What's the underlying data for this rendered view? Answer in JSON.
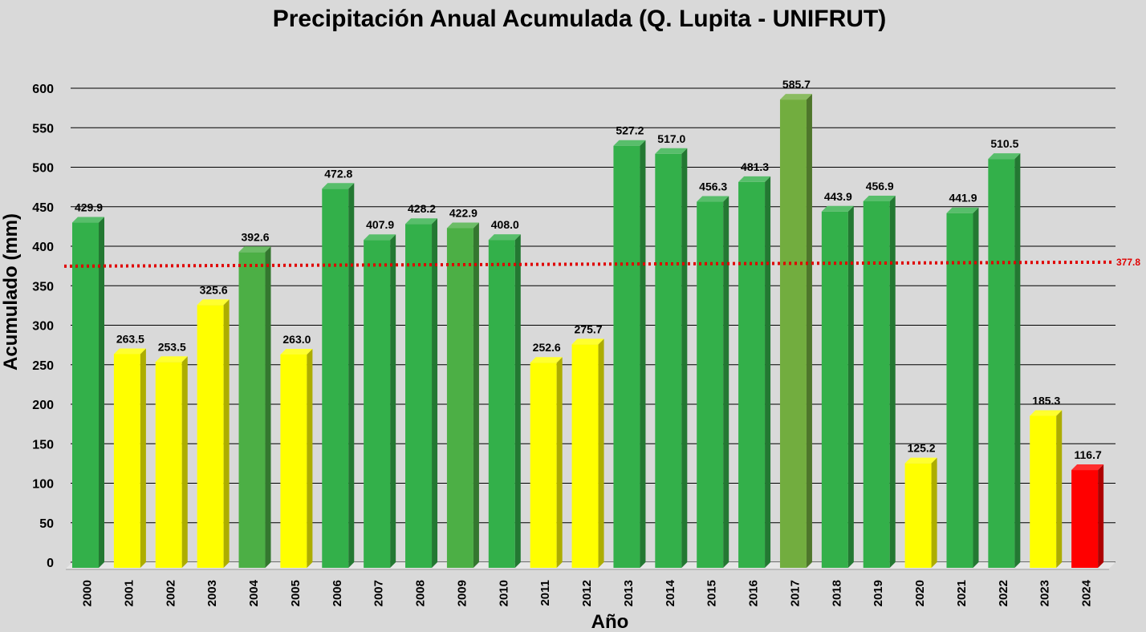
{
  "chart_data": {
    "type": "bar",
    "title": "Precipitación Anual Acumulada (Q. Lupita - UNIFRUT)",
    "xlabel": "Año",
    "ylabel": "Acumulado (mm)",
    "ylim": [
      0,
      600
    ],
    "yticks": [
      "0",
      "50",
      "100",
      "150",
      "200",
      "250",
      "300",
      "350",
      "400",
      "450",
      "500",
      "550",
      "600"
    ],
    "grid": "horizontal",
    "categories": [
      "2000",
      "2001",
      "2002",
      "2003",
      "2004",
      "2005",
      "2006",
      "2007",
      "2008",
      "2009",
      "2010",
      "2011",
      "2012",
      "2013",
      "2014",
      "2015",
      "2016",
      "2017",
      "2018",
      "2019",
      "2020",
      "2021",
      "2022",
      "2023",
      "2024"
    ],
    "values": [
      429.9,
      263.5,
      253.5,
      325.6,
      392.6,
      263.0,
      472.8,
      407.9,
      428.2,
      422.9,
      408.0,
      252.6,
      275.7,
      527.2,
      517.0,
      456.3,
      481.3,
      585.7,
      443.9,
      456.9,
      125.2,
      441.9,
      510.5,
      185.3,
      116.7
    ],
    "value_labels": [
      "429.9",
      "263.5",
      "253.5",
      "325.6",
      "392.6",
      "263.0",
      "472.8",
      "407.9",
      "428.2",
      "422.9",
      "408.0",
      "252.6",
      "275.7",
      "527.2",
      "517.0",
      "456.3",
      "481.3",
      "585.7",
      "443.9",
      "456.9",
      "125.2",
      "441.9",
      "510.5",
      "185.3",
      "116.7"
    ],
    "bar_colors": [
      "#33b04a",
      "#ffff00",
      "#ffff00",
      "#ffff00",
      "#4caf45",
      "#ffff00",
      "#33b04a",
      "#33b04a",
      "#33b04a",
      "#4caf45",
      "#33b04a",
      "#ffff00",
      "#ffff00",
      "#33b04a",
      "#33b04a",
      "#33b04a",
      "#33b04a",
      "#72ad3f",
      "#33b04a",
      "#33b04a",
      "#ffff00",
      "#33b04a",
      "#33b04a",
      "#ffff00",
      "#ff0000"
    ],
    "average": {
      "value": 377.8,
      "label": "377.8",
      "color": "#e00000",
      "style": "dotted"
    }
  }
}
